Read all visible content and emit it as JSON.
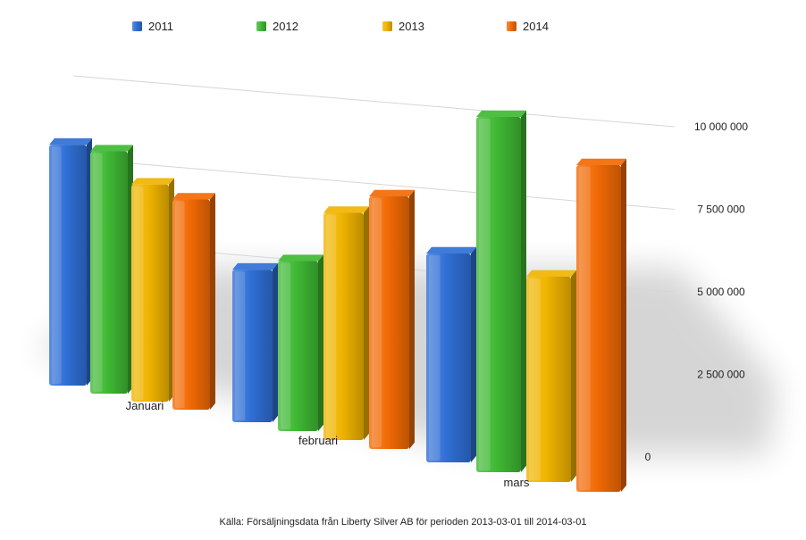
{
  "chart_data": {
    "type": "bar",
    "categories": [
      "Januari",
      "februari",
      "mars"
    ],
    "series": [
      {
        "name": "2011",
        "color": "#2f6fd6",
        "values": [
          8650000,
          4800000,
          5850000
        ]
      },
      {
        "name": "2012",
        "color": "#3fb933",
        "values": [
          8700000,
          5350000,
          9950000
        ]
      },
      {
        "name": "2013",
        "color": "#f0b400",
        "values": [
          7800000,
          7150000,
          5750000
        ]
      },
      {
        "name": "2014",
        "color": "#f26a05",
        "values": [
          7550000,
          7950000,
          9150000
        ]
      }
    ],
    "yticks": [
      "10 000 000",
      "7 500 000",
      "5 000 000",
      "2 500 000",
      "0"
    ],
    "ylim": [
      0,
      10000000
    ],
    "legend_position": "top",
    "grid": true,
    "source": "Källa: Försäljningsdata från Liberty Silver AB för perioden 2013-03-01 till 2014-03-01"
  }
}
